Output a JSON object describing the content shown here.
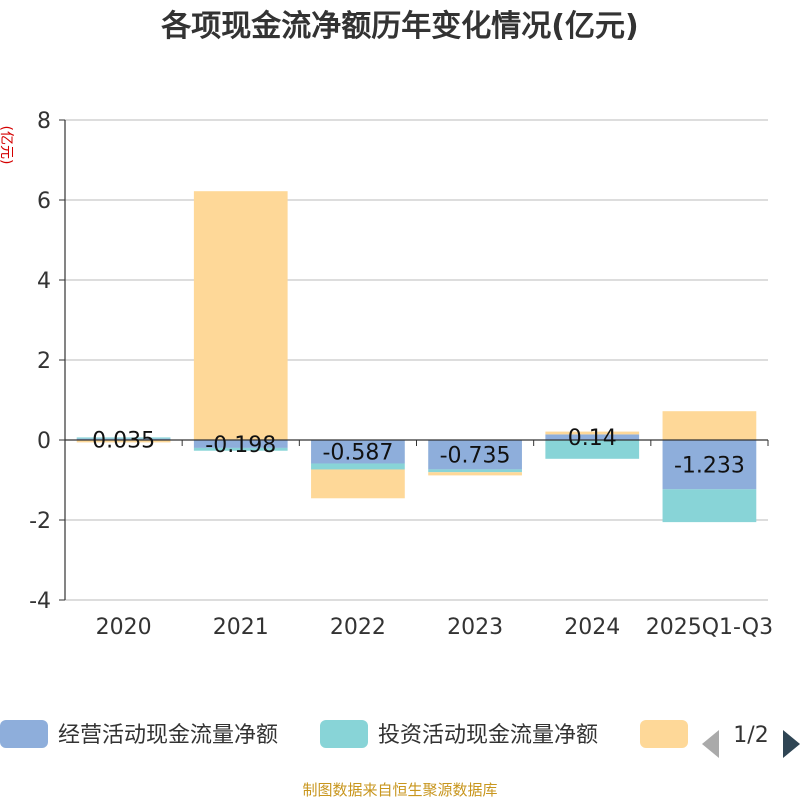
{
  "colors": {
    "operating": "#8eaedb",
    "investing": "#88d4d7",
    "financing": "#fed898",
    "grid": "#bbbbbb",
    "axis": "#333333"
  },
  "chart_data": {
    "type": "bar",
    "stacked": true,
    "title": "各项现金流净额历年变化情况(亿元)",
    "ylabel": "(亿元)",
    "xlabel": "",
    "ylim": [
      -4,
      8
    ],
    "yticks": [
      -4,
      -2,
      0,
      2,
      4,
      6,
      8
    ],
    "grid": true,
    "categories": [
      "2020",
      "2021",
      "2022",
      "2023",
      "2024",
      "2025Q1-Q3"
    ],
    "series": [
      {
        "name": "经营活动现金流量净额",
        "colorKey": "operating",
        "values": [
          0.035,
          -0.198,
          -0.587,
          -0.735,
          0.14,
          -1.233
        ],
        "labels": [
          "0.035",
          "-0.198",
          "-0.587",
          "-0.735",
          "0.14",
          "-1.233"
        ]
      },
      {
        "name": "投资活动现金流量净额",
        "colorKey": "investing",
        "values": [
          0.03,
          -0.07,
          -0.15,
          -0.07,
          -0.47,
          -0.82
        ]
      },
      {
        "name": "",
        "colorKey": "financing",
        "values": [
          -0.06,
          6.22,
          -0.72,
          -0.08,
          0.07,
          0.72
        ]
      }
    ],
    "legend": {
      "placement": "bottom",
      "page": "1/2"
    }
  },
  "source": "制图数据来自恒生聚源数据库"
}
